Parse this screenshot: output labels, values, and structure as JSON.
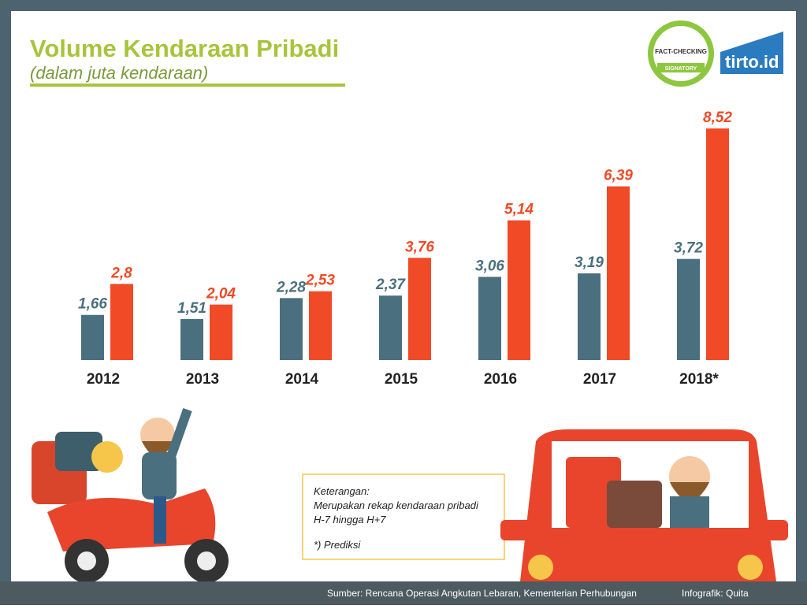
{
  "chart_data": {
    "type": "bar",
    "title": "Volume Kendaraan Pribadi",
    "subtitle": "(dalam juta kendaraan)",
    "categories": [
      "2012",
      "2013",
      "2014",
      "2015",
      "2016",
      "2017",
      "2018*"
    ],
    "series": [
      {
        "color": "#4a6f7e",
        "values": [
          1.66,
          1.51,
          2.28,
          2.37,
          3.06,
          3.19,
          3.72
        ],
        "value_labels": [
          "1,66",
          "1,51",
          "2,28",
          "2,37",
          "3,06",
          "3,19",
          "3,72"
        ]
      },
      {
        "color": "#f04a26",
        "values": [
          2.8,
          2.04,
          2.53,
          3.76,
          5.14,
          6.39,
          8.52
        ],
        "value_labels": [
          "2,8",
          "2,04",
          "2,53",
          "3,76",
          "5,14",
          "6,39",
          "8,52"
        ]
      }
    ],
    "note": {
      "heading": "Keterangan:",
      "lines": [
        "Merupakan rekap kendaraan pribadi",
        "H-7 hingga H+7"
      ],
      "footnote": "*) Prediksi"
    },
    "badge": {
      "top": "FACT-CHECKING",
      "bottom": "SIGNATORY"
    },
    "logo": "tirto.id",
    "source": "Sumber: Rencana Operasi Angkutan Lebaran, Kementerian Perhubungan",
    "credit": "Infografik: Quita"
  }
}
